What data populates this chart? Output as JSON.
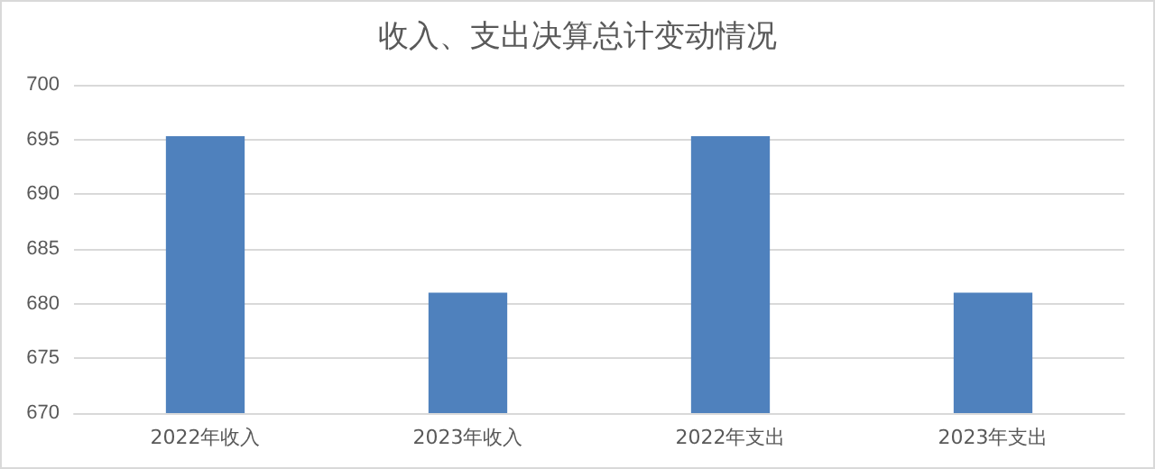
{
  "chart_data": {
    "type": "bar",
    "title": "收入、支出决算总计变动情况",
    "categories": [
      "2022年收入",
      "2023年收入",
      "2022年支出",
      "2023年支出"
    ],
    "values": [
      695.3,
      681.0,
      695.3,
      681.0
    ],
    "color": "#4f81bd",
    "ylim": [
      670,
      700
    ],
    "yticks": [
      670,
      675,
      680,
      685,
      690,
      695,
      700
    ],
    "grid": "y"
  }
}
